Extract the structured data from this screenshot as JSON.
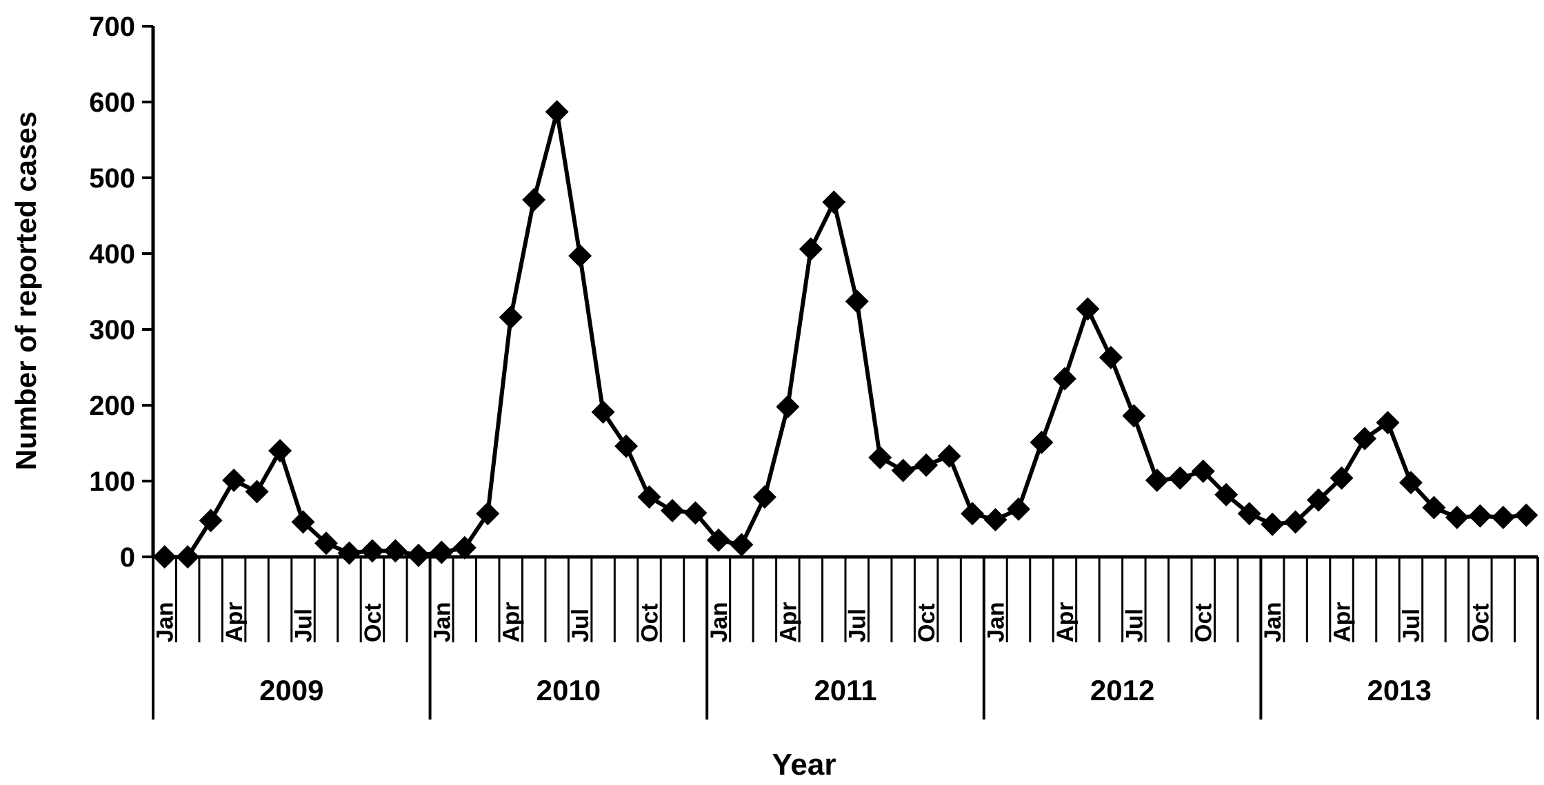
{
  "chart_data": {
    "type": "line",
    "title": "",
    "xlabel": "Year",
    "ylabel": "Number of reported cases",
    "ylim": [
      0,
      700
    ],
    "yticks": [
      0,
      100,
      200,
      300,
      400,
      500,
      600,
      700
    ],
    "grid": false,
    "legend": "none",
    "month_tick_labels": [
      "Jan",
      "",
      "",
      "Apr",
      "",
      "",
      "Jul",
      "",
      "",
      "Oct",
      "",
      ""
    ],
    "years": [
      "2009",
      "2010",
      "2011",
      "2012",
      "2013"
    ],
    "series": [
      {
        "values": [
          0,
          0,
          48,
          101,
          86,
          140,
          46,
          18,
          5,
          8,
          8,
          2,
          6,
          12,
          57,
          316,
          471,
          587,
          397,
          191,
          146,
          79,
          61,
          58,
          22,
          16,
          79,
          198,
          406,
          468,
          337,
          131,
          114,
          121,
          133,
          57,
          49,
          63,
          151,
          235,
          327,
          263,
          186,
          101,
          104,
          113,
          82,
          57,
          43,
          46,
          75,
          104,
          156,
          177,
          98,
          65,
          52,
          54,
          52,
          55
        ]
      }
    ]
  },
  "colors": {
    "line": "#000000",
    "marker": "#000000",
    "axis": "#000000"
  }
}
